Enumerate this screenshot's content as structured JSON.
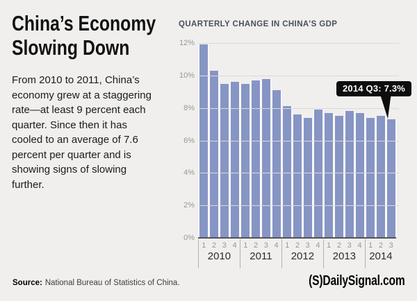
{
  "background": "#f0efee",
  "headline": {
    "line1": "China’s Economy",
    "line2": "Slowing Down"
  },
  "intro": "From 2010 to 2011, China’s economy grew at a staggering rate—at least 9 percent each quarter. Since then it has cooled to an average of 7.6 percent per quarter and is showing signs of slowing further.",
  "source": {
    "label": "Source:",
    "text": "National Bureau of Statistics of China."
  },
  "logo": {
    "mark": "(S)",
    "text": "DailySignal.com"
  },
  "chart_data": {
    "type": "bar",
    "title": "QUARTERLY CHANGE IN CHINA’S GDP",
    "xlabel": "",
    "ylabel": "",
    "ylim": [
      0,
      12
    ],
    "y_ticks": [
      "12%",
      "10%",
      "8%",
      "6%",
      "4%",
      "2%",
      "0%"
    ],
    "grid": true,
    "legend": "none",
    "bar_color": "#8795c4",
    "gap_color": "#fafaf9",
    "years": [
      {
        "year": "2010",
        "quarters": [
          "1",
          "2",
          "3",
          "4"
        ],
        "values": [
          11.9,
          10.3,
          9.5,
          9.6
        ]
      },
      {
        "year": "2011",
        "quarters": [
          "1",
          "2",
          "3",
          "4"
        ],
        "values": [
          9.5,
          9.7,
          9.8,
          9.1
        ]
      },
      {
        "year": "2012",
        "quarters": [
          "1",
          "2",
          "3",
          "4"
        ],
        "values": [
          8.1,
          7.6,
          7.4,
          7.9
        ]
      },
      {
        "year": "2013",
        "quarters": [
          "1",
          "2",
          "3",
          "4"
        ],
        "values": [
          7.7,
          7.5,
          7.8,
          7.7
        ]
      },
      {
        "year": "2014",
        "quarters": [
          "1",
          "2",
          "3"
        ],
        "values": [
          7.4,
          7.5,
          7.3
        ]
      }
    ],
    "annotation": {
      "text": "2014 Q3: 7.3%",
      "target_year": "2014",
      "target_quarter": "3",
      "value": 7.3,
      "box_color": "#0d0d0d",
      "text_color": "#ffffff"
    }
  }
}
